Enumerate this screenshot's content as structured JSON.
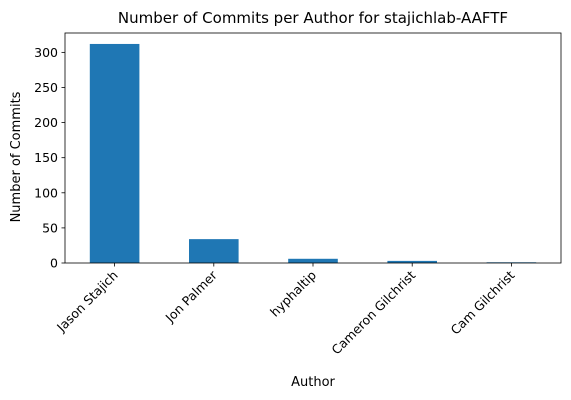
{
  "chart_data": {
    "type": "bar",
    "title": "Number of Commits per Author for stajichlab-AAFTF",
    "xlabel": "Author",
    "ylabel": "Number of Commits",
    "categories": [
      "Jason Stajich",
      "Jon Palmer",
      "hyphaltip",
      "Cameron Gilchrist",
      "Cam Gilchrist"
    ],
    "values": [
      312,
      34,
      6,
      3,
      1
    ],
    "ylim": [
      0,
      327.6
    ],
    "yticks": [
      0,
      50,
      100,
      150,
      200,
      250,
      300
    ],
    "grid": false,
    "legend": "none",
    "bar_color": "#1f77b4"
  }
}
